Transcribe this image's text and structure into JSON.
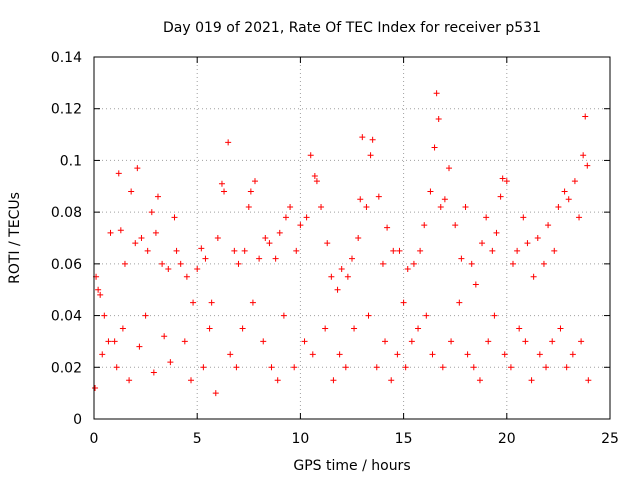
{
  "chart_data": {
    "type": "scatter",
    "title": "Day 019 of 2021, Rate Of TEC Index for receiver p531",
    "xlabel": "GPS time / hours",
    "ylabel": "ROTI / TECUs",
    "xlim": [
      0,
      25
    ],
    "ylim": [
      0,
      0.14
    ],
    "xticks": [
      0,
      5,
      10,
      15,
      20,
      25
    ],
    "yticks": [
      0,
      0.02,
      0.04,
      0.06,
      0.08,
      0.1,
      0.12,
      0.14
    ],
    "xtick_labels": [
      "0",
      "5",
      "10",
      "15",
      "20",
      "25"
    ],
    "ytick_labels": [
      "0",
      "0.02",
      "0.04",
      "0.06",
      "0.08",
      "0.1",
      "0.12",
      "0.14"
    ],
    "grid": true,
    "marker": "+",
    "color": "#ff0000",
    "series": [
      {
        "name": "ROTI",
        "x": [
          0.1,
          0.2,
          0.3,
          0.5,
          0.8,
          1.0,
          1.2,
          1.3,
          1.5,
          1.8,
          2.0,
          2.1,
          2.3,
          2.6,
          2.8,
          3.0,
          3.1,
          3.3,
          3.6,
          3.9,
          4.0,
          4.2,
          4.5,
          4.8,
          5.0,
          5.2,
          5.4,
          5.7,
          6.0,
          6.2,
          6.3,
          6.5,
          6.8,
          7.0,
          7.3,
          7.5,
          7.6,
          7.8,
          8.0,
          8.3,
          8.5,
          8.8,
          9.0,
          9.3,
          9.5,
          9.8,
          10.0,
          10.3,
          10.5,
          10.7,
          10.8,
          11.0,
          11.3,
          11.5,
          11.8,
          12.0,
          12.3,
          12.5,
          12.8,
          12.9,
          13.0,
          13.2,
          13.4,
          13.5,
          13.8,
          14.0,
          14.2,
          14.5,
          14.8,
          15.0,
          15.2,
          15.5,
          15.8,
          16.0,
          16.3,
          16.5,
          16.6,
          16.7,
          16.8,
          17.0,
          17.2,
          17.5,
          17.8,
          18.0,
          18.3,
          18.5,
          18.8,
          19.0,
          19.3,
          19.5,
          19.7,
          19.8,
          20.0,
          20.3,
          20.5,
          20.8,
          21.0,
          21.3,
          21.5,
          21.8,
          22.0,
          22.3,
          22.5,
          22.8,
          23.0,
          23.3,
          23.5,
          23.7,
          23.8,
          23.9,
          0.05,
          0.4,
          0.7,
          1.1,
          1.4,
          1.7,
          2.2,
          2.5,
          2.9,
          3.4,
          3.7,
          4.4,
          4.7,
          5.3,
          5.6,
          5.9,
          6.6,
          6.9,
          7.2,
          7.7,
          8.2,
          8.6,
          8.9,
          9.2,
          9.7,
          10.2,
          10.6,
          11.2,
          11.6,
          11.9,
          12.2,
          12.6,
          13.3,
          13.7,
          14.1,
          14.4,
          14.7,
          15.1,
          15.4,
          15.7,
          16.1,
          16.4,
          16.9,
          17.3,
          17.7,
          18.1,
          18.4,
          18.7,
          19.1,
          19.4,
          19.9,
          20.2,
          20.6,
          20.9,
          21.2,
          21.6,
          21.9,
          22.2,
          22.6,
          22.9,
          23.2,
          23.6,
          23.95
        ],
        "y": [
          0.055,
          0.05,
          0.048,
          0.04,
          0.072,
          0.03,
          0.095,
          0.073,
          0.06,
          0.088,
          0.068,
          0.097,
          0.07,
          0.065,
          0.08,
          0.072,
          0.086,
          0.06,
          0.058,
          0.078,
          0.065,
          0.06,
          0.055,
          0.045,
          0.058,
          0.066,
          0.062,
          0.045,
          0.07,
          0.091,
          0.088,
          0.107,
          0.065,
          0.06,
          0.065,
          0.082,
          0.088,
          0.092,
          0.062,
          0.07,
          0.068,
          0.062,
          0.072,
          0.078,
          0.082,
          0.065,
          0.075,
          0.078,
          0.102,
          0.094,
          0.092,
          0.082,
          0.068,
          0.055,
          0.05,
          0.058,
          0.055,
          0.062,
          0.07,
          0.085,
          0.109,
          0.082,
          0.102,
          0.108,
          0.086,
          0.06,
          0.074,
          0.065,
          0.065,
          0.045,
          0.058,
          0.06,
          0.065,
          0.075,
          0.088,
          0.105,
          0.126,
          0.116,
          0.082,
          0.085,
          0.097,
          0.075,
          0.062,
          0.082,
          0.06,
          0.052,
          0.068,
          0.078,
          0.065,
          0.072,
          0.086,
          0.093,
          0.092,
          0.06,
          0.065,
          0.078,
          0.068,
          0.055,
          0.07,
          0.06,
          0.075,
          0.065,
          0.082,
          0.088,
          0.085,
          0.092,
          0.078,
          0.102,
          0.117,
          0.098,
          0.012,
          0.025,
          0.03,
          0.02,
          0.035,
          0.015,
          0.028,
          0.04,
          0.018,
          0.032,
          0.022,
          0.03,
          0.015,
          0.02,
          0.035,
          0.01,
          0.025,
          0.02,
          0.035,
          0.045,
          0.03,
          0.02,
          0.015,
          0.04,
          0.02,
          0.03,
          0.025,
          0.035,
          0.015,
          0.025,
          0.02,
          0.035,
          0.04,
          0.02,
          0.03,
          0.015,
          0.025,
          0.02,
          0.03,
          0.035,
          0.04,
          0.025,
          0.02,
          0.03,
          0.045,
          0.025,
          0.02,
          0.015,
          0.03,
          0.04,
          0.025,
          0.02,
          0.035,
          0.03,
          0.015,
          0.025,
          0.02,
          0.03,
          0.035,
          0.02,
          0.025,
          0.03,
          0.015
        ]
      }
    ]
  }
}
